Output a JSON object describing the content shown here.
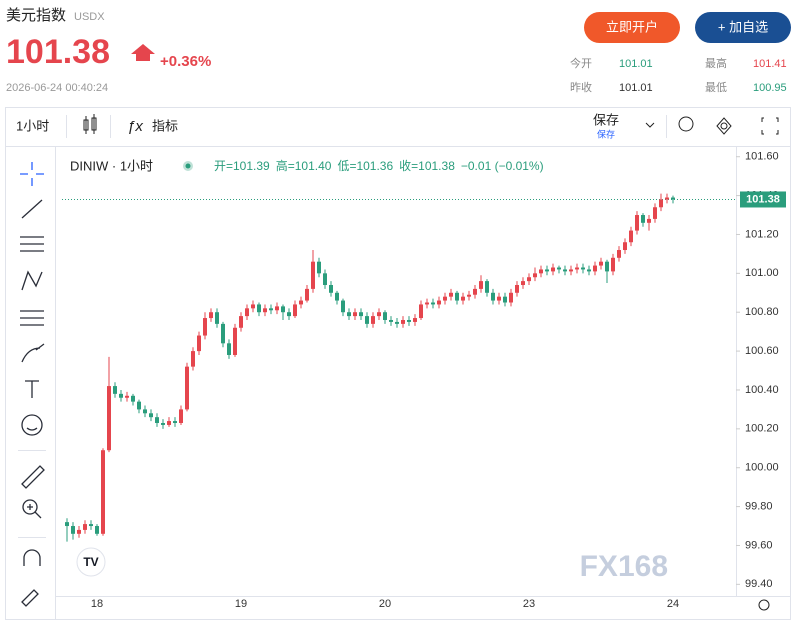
{
  "header": {
    "title": "美元指数",
    "code": "USDX",
    "price": "101.38",
    "change": "+0.36%",
    "time": "2026-06-24 00:40:24",
    "buttons": [
      "立即开户",
      "+ 加自选"
    ],
    "stats": [
      {
        "label": "今开",
        "value": "101.01"
      },
      {
        "label": "最高",
        "value": "101.41"
      },
      {
        "label": "昨收",
        "value": "101.01"
      },
      {
        "label": "最低",
        "value": "100.95"
      }
    ]
  },
  "toolbar": {
    "interval": "1小时",
    "indicators": "指标",
    "save": "保存",
    "save_sub": "保存"
  },
  "chart_data": {
    "type": "candlestick",
    "symbol": "DINIW · 1小时",
    "ohlc_labels": [
      "开=101.39",
      "高=101.40",
      "低=101.36",
      "收=101.38",
      "−0.01 (−0.01%)"
    ],
    "watermark": "FX168",
    "categories": [
      null,
      null,
      null,
      null,
      null,
      "18",
      null,
      null,
      null,
      null,
      null,
      null,
      null,
      null,
      null,
      null,
      null,
      null,
      null,
      null,
      null,
      null,
      null,
      null,
      null,
      null,
      null,
      null,
      null,
      "19",
      null,
      null,
      null,
      null,
      null,
      null,
      null,
      null,
      null,
      null,
      null,
      null,
      null,
      null,
      null,
      null,
      null,
      null,
      null,
      null,
      null,
      null,
      null,
      "20",
      null,
      null,
      null,
      null,
      null,
      null,
      null,
      null,
      null,
      null,
      null,
      null,
      null,
      null,
      null,
      null,
      null,
      null,
      null,
      null,
      null,
      null,
      null,
      "23",
      null,
      null,
      null,
      null,
      null,
      null,
      null,
      null,
      null,
      null,
      null,
      null,
      null,
      null,
      null,
      null,
      null,
      null,
      null,
      null,
      null,
      null,
      null,
      "24"
    ],
    "open": [
      99.72,
      99.7,
      99.66,
      99.68,
      99.71,
      99.7,
      99.66,
      100.09,
      100.42,
      100.38,
      100.36,
      100.37,
      100.34,
      100.3,
      100.28,
      100.26,
      100.23,
      100.22,
      100.24,
      100.23,
      100.3,
      100.52,
      100.6,
      100.68,
      100.77,
      100.8,
      100.74,
      100.64,
      100.58,
      100.72,
      100.78,
      100.82,
      100.84,
      100.8,
      100.82,
      100.81,
      100.83,
      100.8,
      100.78,
      100.84,
      100.86,
      100.92,
      101.06,
      101.0,
      100.94,
      100.9,
      100.86,
      100.8,
      100.78,
      100.8,
      100.78,
      100.74,
      100.78,
      100.8,
      100.76,
      100.75,
      100.74,
      100.76,
      100.75,
      100.77,
      100.84,
      100.85,
      100.84,
      100.86,
      100.88,
      100.9,
      100.86,
      100.88,
      100.89,
      100.92,
      100.96,
      100.9,
      100.86,
      100.88,
      100.85,
      100.9,
      100.94,
      100.96,
      100.98,
      101.0,
      101.02,
      101.01,
      101.03,
      101.02,
      101.01,
      101.02,
      101.03,
      101.02,
      101.01,
      101.04,
      101.06,
      101.01,
      101.08,
      101.12,
      101.16,
      101.22,
      101.3,
      101.26,
      101.28,
      101.34,
      101.38,
      101.39
    ],
    "high": [
      99.74,
      99.72,
      99.7,
      99.73,
      99.73,
      99.71,
      100.1,
      100.57,
      100.44,
      100.4,
      100.39,
      100.38,
      100.35,
      100.32,
      100.3,
      100.28,
      100.25,
      100.26,
      100.26,
      100.32,
      100.54,
      100.62,
      100.7,
      100.8,
      100.82,
      100.82,
      100.75,
      100.66,
      100.74,
      100.8,
      100.84,
      100.86,
      100.85,
      100.84,
      100.84,
      100.85,
      100.84,
      100.82,
      100.86,
      100.88,
      100.94,
      101.12,
      101.08,
      101.02,
      100.96,
      100.91,
      100.87,
      100.82,
      100.82,
      100.82,
      100.8,
      100.8,
      100.82,
      100.81,
      100.78,
      100.77,
      100.78,
      100.78,
      100.79,
      100.86,
      100.87,
      100.87,
      100.88,
      100.9,
      100.92,
      100.91,
      100.9,
      100.91,
      100.94,
      100.99,
      100.97,
      100.92,
      100.9,
      100.9,
      100.92,
      100.96,
      100.98,
      101.0,
      101.03,
      101.04,
      101.04,
      101.05,
      101.04,
      101.04,
      101.04,
      101.05,
      101.05,
      101.04,
      101.06,
      101.08,
      101.07,
      101.1,
      101.14,
      101.18,
      101.24,
      101.32,
      101.31,
      101.3,
      101.36,
      101.41,
      101.41,
      101.4
    ],
    "low": [
      99.62,
      99.63,
      99.64,
      99.66,
      99.68,
      99.65,
      99.65,
      100.08,
      100.36,
      100.34,
      100.34,
      100.32,
      100.28,
      100.26,
      100.24,
      100.21,
      100.2,
      100.21,
      100.21,
      100.22,
      100.29,
      100.5,
      100.58,
      100.66,
      100.75,
      100.72,
      100.62,
      100.56,
      100.57,
      100.7,
      100.76,
      100.8,
      100.78,
      100.78,
      100.79,
      100.79,
      100.76,
      100.76,
      100.77,
      100.82,
      100.85,
      100.9,
      100.98,
      100.92,
      100.88,
      100.84,
      100.78,
      100.76,
      100.76,
      100.76,
      100.72,
      100.72,
      100.76,
      100.74,
      100.73,
      100.72,
      100.72,
      100.73,
      100.73,
      100.76,
      100.82,
      100.82,
      100.82,
      100.84,
      100.86,
      100.84,
      100.84,
      100.86,
      100.87,
      100.9,
      100.88,
      100.84,
      100.84,
      100.83,
      100.83,
      100.88,
      100.92,
      100.94,
      100.96,
      100.98,
      100.99,
      100.99,
      101.0,
      100.99,
      100.99,
      101.0,
      101.0,
      100.99,
      100.99,
      101.02,
      100.95,
      100.99,
      101.06,
      101.1,
      101.14,
      101.2,
      101.24,
      101.22,
      101.26,
      101.32,
      101.36,
      101.36
    ],
    "close": [
      99.7,
      99.66,
      99.68,
      99.71,
      99.7,
      99.66,
      100.09,
      100.42,
      100.38,
      100.36,
      100.37,
      100.34,
      100.3,
      100.28,
      100.26,
      100.23,
      100.22,
      100.24,
      100.23,
      100.3,
      100.52,
      100.6,
      100.68,
      100.77,
      100.8,
      100.74,
      100.64,
      100.58,
      100.72,
      100.78,
      100.82,
      100.84,
      100.8,
      100.82,
      100.81,
      100.83,
      100.8,
      100.78,
      100.84,
      100.86,
      100.92,
      101.06,
      101.0,
      100.94,
      100.9,
      100.86,
      100.8,
      100.78,
      100.8,
      100.78,
      100.74,
      100.78,
      100.8,
      100.76,
      100.75,
      100.74,
      100.76,
      100.75,
      100.77,
      100.84,
      100.85,
      100.84,
      100.86,
      100.88,
      100.9,
      100.86,
      100.88,
      100.89,
      100.92,
      100.96,
      100.9,
      100.86,
      100.88,
      100.85,
      100.9,
      100.94,
      100.96,
      100.98,
      101.0,
      101.02,
      101.01,
      101.03,
      101.02,
      101.01,
      101.02,
      101.03,
      101.02,
      101.01,
      101.04,
      101.06,
      101.01,
      101.08,
      101.12,
      101.16,
      101.22,
      101.3,
      101.26,
      101.28,
      101.34,
      101.38,
      101.39,
      101.38
    ],
    "last_price": 101.38,
    "ylim": [
      99.34,
      101.65
    ],
    "yticks": [
      {
        "value": 99.4,
        "label": "99.40"
      },
      {
        "value": 99.6,
        "label": "99.60"
      },
      {
        "value": 99.8,
        "label": "99.80"
      },
      {
        "value": 100,
        "label": "100.00"
      },
      {
        "value": 100.2,
        "label": "100.20"
      },
      {
        "value": 100.4,
        "label": "100.40"
      },
      {
        "value": 100.6,
        "label": "100.60"
      },
      {
        "value": 100.8,
        "label": "100.80"
      },
      {
        "value": 101,
        "label": "101.00"
      },
      {
        "value": 101.2,
        "label": "101.20"
      },
      {
        "value": 101.4,
        "label": "101.40"
      },
      {
        "value": 101.6,
        "label": "101.60"
      }
    ],
    "colors": {
      "up": "#e5454d",
      "down": "#2a9d7c"
    }
  }
}
